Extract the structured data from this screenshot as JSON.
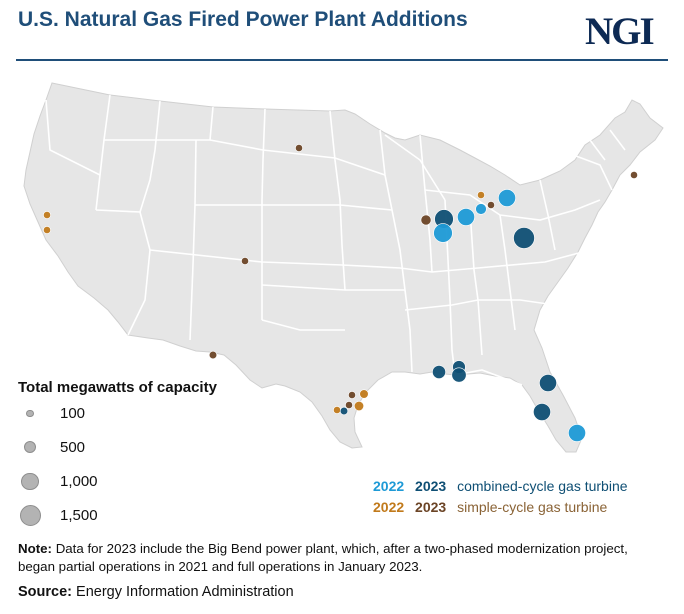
{
  "header": {
    "title": "U.S. Natural Gas Fired Power Plant Additions",
    "logo": "NGI"
  },
  "colors": {
    "cc_2022": "#1e9ad6",
    "cc_2023": "#0f4f74",
    "sc_2022": "#c17a1b",
    "sc_2023": "#6b4426",
    "land": "#e6e6e6",
    "borders": "#ffffff"
  },
  "size_legend": {
    "title": "Total megawatts of capacity",
    "entries": [
      {
        "label": "100",
        "mw": 100
      },
      {
        "label": "500",
        "mw": 500
      },
      {
        "label": "1,000",
        "mw": 1000
      },
      {
        "label": "1,500",
        "mw": 1500
      }
    ]
  },
  "type_legend": [
    {
      "year_a": "2022",
      "year_b": "2023",
      "label": "combined-cycle gas turbine"
    },
    {
      "year_a": "2022",
      "year_b": "2023",
      "label": "simple-cycle gas turbine"
    }
  ],
  "plants": [
    {
      "region": "California",
      "type": "simple-cycle",
      "year": 2022,
      "mw": 100
    },
    {
      "region": "California",
      "type": "simple-cycle",
      "year": 2022,
      "mw": 100
    },
    {
      "region": "Colorado",
      "type": "simple-cycle",
      "year": 2023,
      "mw": 150
    },
    {
      "region": "North Dakota",
      "type": "simple-cycle",
      "year": 2023,
      "mw": 100
    },
    {
      "region": "West Texas",
      "type": "simple-cycle",
      "year": 2023,
      "mw": 200
    },
    {
      "region": "Illinois",
      "type": "simple-cycle",
      "year": 2023,
      "mw": 350
    },
    {
      "region": "Illinois",
      "type": "combined-cycle",
      "year": 2023,
      "mw": 1200
    },
    {
      "region": "Illinois",
      "type": "combined-cycle",
      "year": 2022,
      "mw": 1200
    },
    {
      "region": "Indiana",
      "type": "combined-cycle",
      "year": 2022,
      "mw": 1000
    },
    {
      "region": "Ohio",
      "type": "combined-cycle",
      "year": 2022,
      "mw": 400
    },
    {
      "region": "Michigan",
      "type": "simple-cycle",
      "year": 2022,
      "mw": 100
    },
    {
      "region": "Michigan",
      "type": "simple-cycle",
      "year": 2023,
      "mw": 100
    },
    {
      "region": "Ohio",
      "type": "combined-cycle",
      "year": 2022,
      "mw": 1000
    },
    {
      "region": "West Virginia",
      "type": "combined-cycle",
      "year": 2023,
      "mw": 1500
    },
    {
      "region": "Maine",
      "type": "simple-cycle",
      "year": 2023,
      "mw": 100
    },
    {
      "region": "Louisiana",
      "type": "combined-cycle",
      "year": 2023,
      "mw": 600
    },
    {
      "region": "Alabama",
      "type": "combined-cycle",
      "year": 2023,
      "mw": 550
    },
    {
      "region": "Alabama",
      "type": "combined-cycle",
      "year": 2023,
      "mw": 700
    },
    {
      "region": "Southeast Texas",
      "type": "simple-cycle",
      "year": 2023,
      "mw": 150
    },
    {
      "region": "Southeast Texas",
      "type": "simple-cycle",
      "year": 2022,
      "mw": 250
    },
    {
      "region": "Southeast Texas",
      "type": "simple-cycle",
      "year": 2023,
      "mw": 150
    },
    {
      "region": "Southeast Texas",
      "type": "simple-cycle",
      "year": 2022,
      "mw": 300
    },
    {
      "region": "Texas Gulf Coast",
      "type": "simple-cycle",
      "year": 2022,
      "mw": 150
    },
    {
      "region": "Texas Gulf Coast",
      "type": "combined-cycle",
      "year": 2023,
      "mw": 200
    },
    {
      "region": "North Florida",
      "type": "combined-cycle",
      "year": 2023,
      "mw": 1000
    },
    {
      "region": "Central Florida",
      "type": "combined-cycle",
      "year": 2023,
      "mw": 1000
    },
    {
      "region": "South Florida",
      "type": "combined-cycle",
      "year": 2022,
      "mw": 1000
    }
  ],
  "note": {
    "label": "Note:",
    "text": "Data for 2023 include the Big Bend power plant, which, after a two-phased modernization project, began partial operations in 2021 and full operations in January 2023."
  },
  "source": {
    "label": "Source:",
    "text": "Energy Information Administration"
  }
}
